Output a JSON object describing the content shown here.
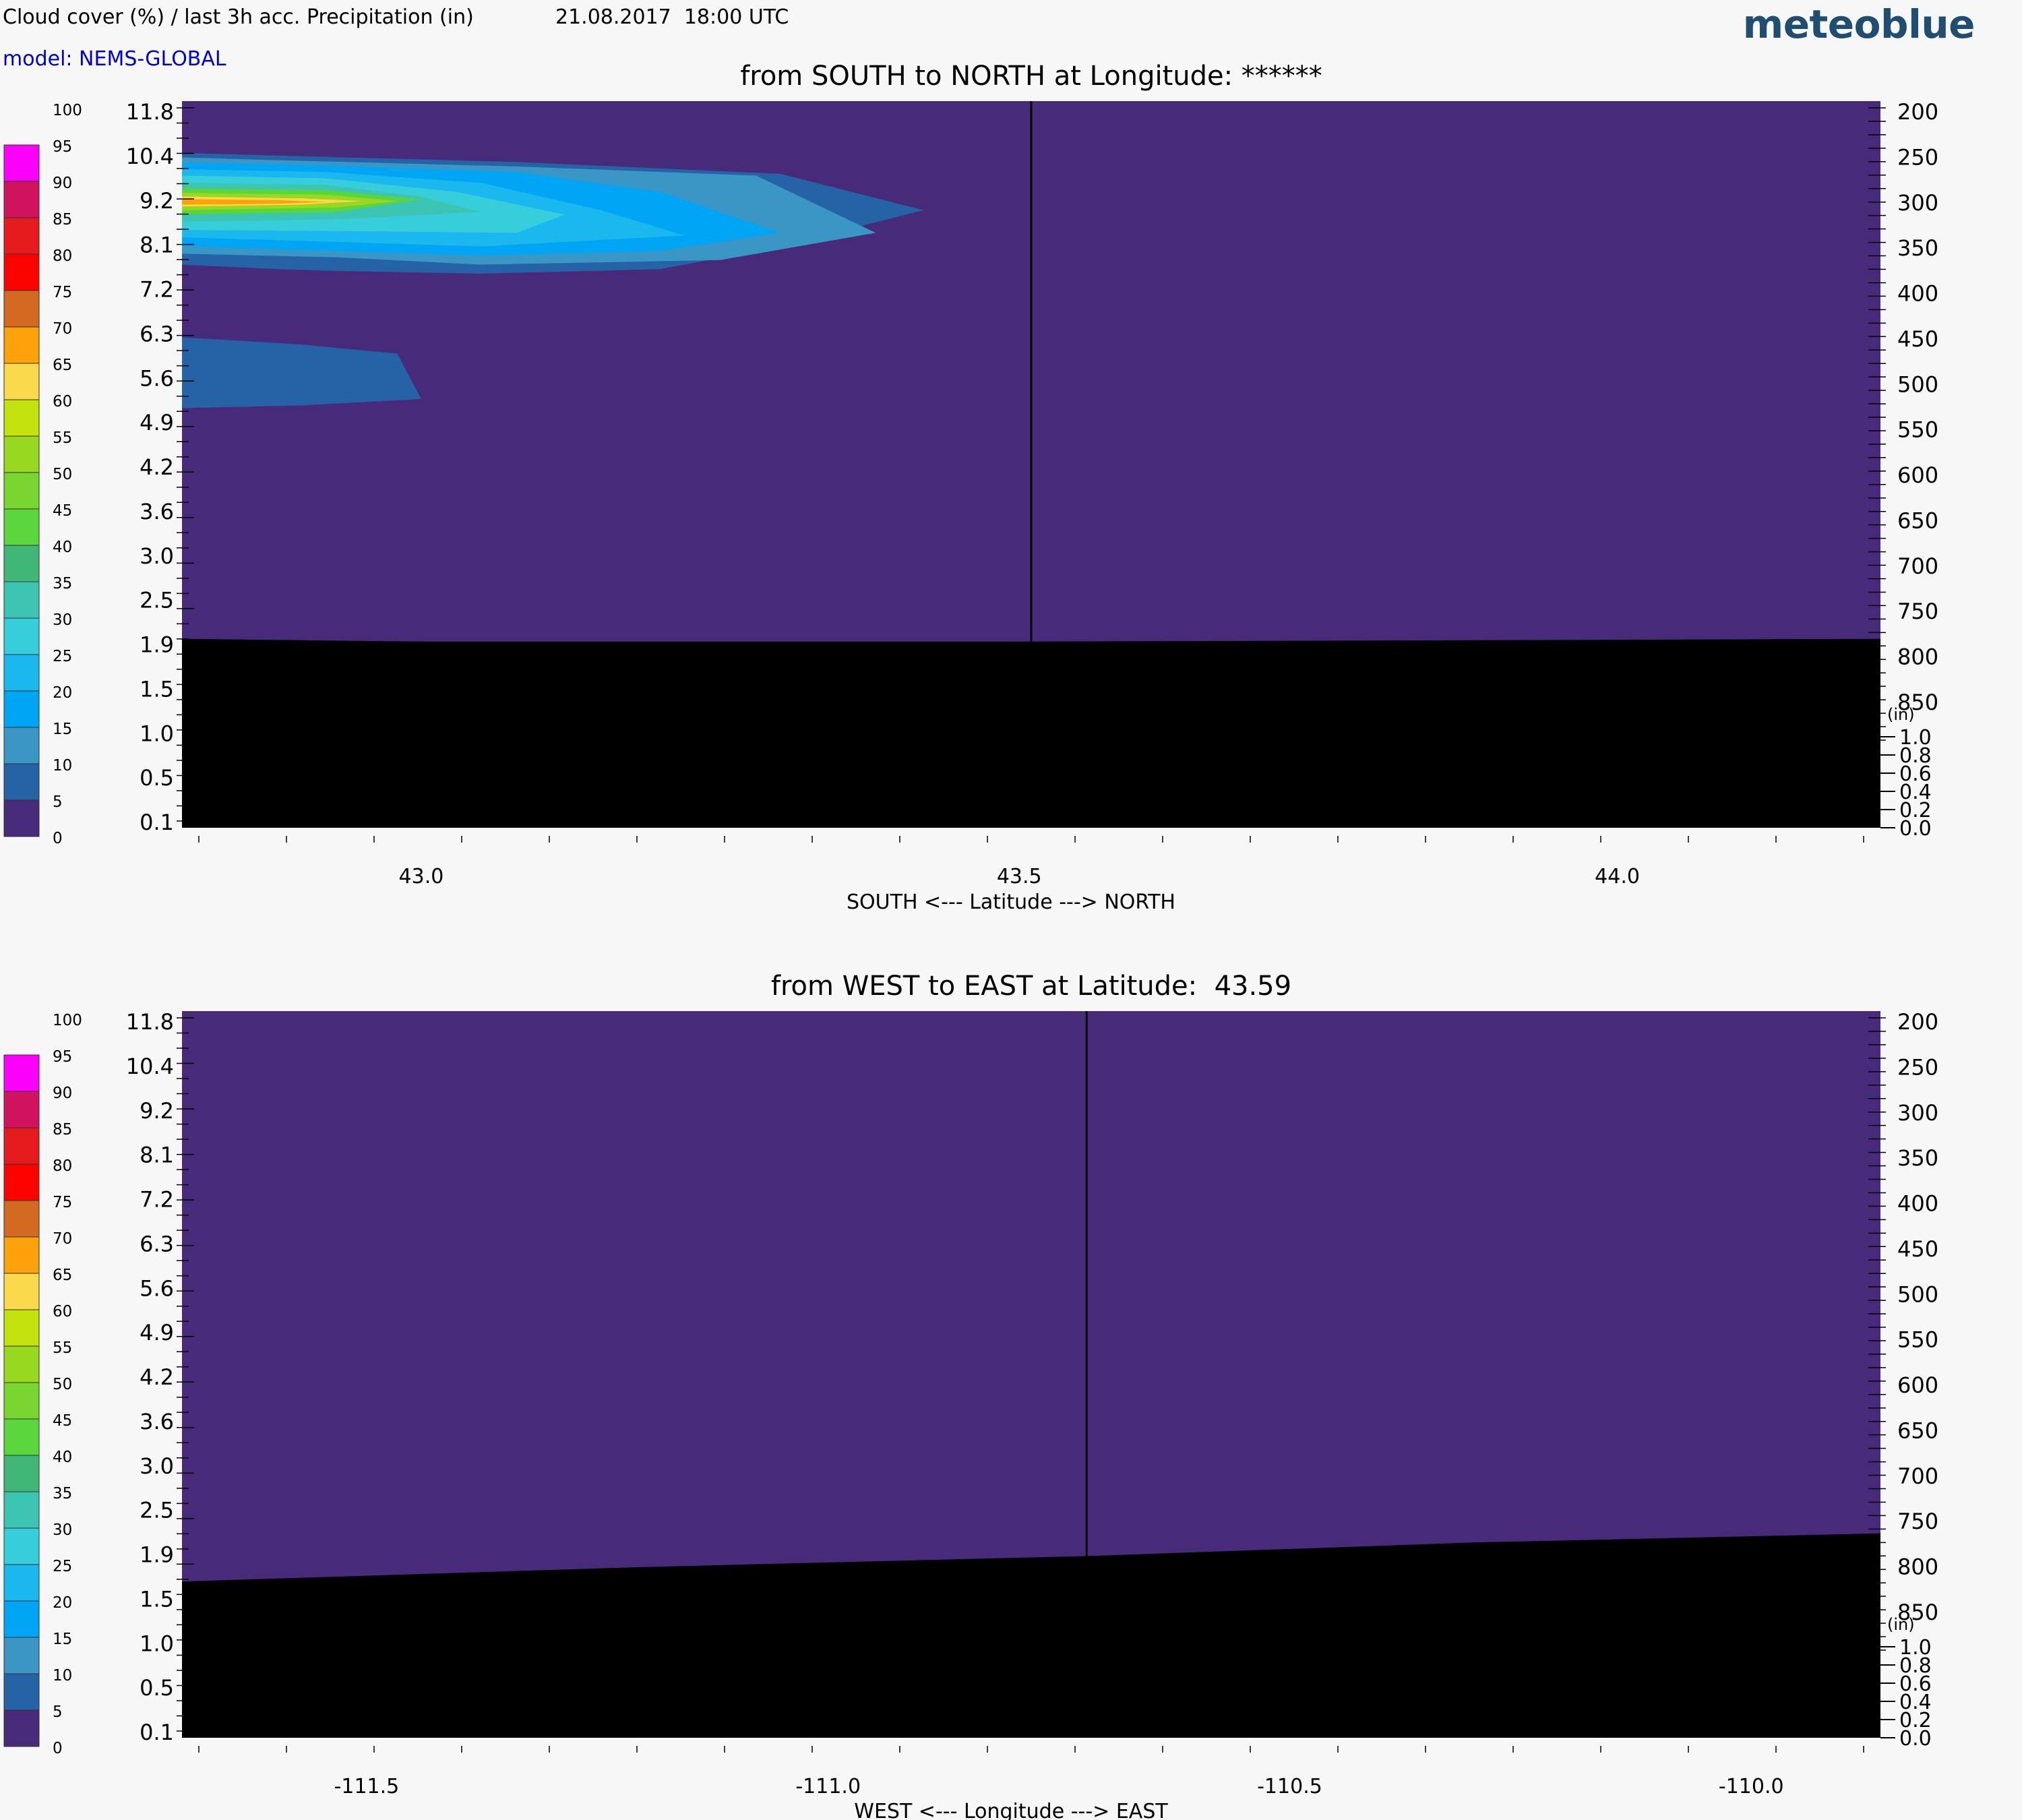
{
  "header": {
    "left_title": "Cloud cover (%) / last 3h acc. Precipitation (in)",
    "datetime": "21.08.2017  18:00 UTC",
    "model": "model: NEMS-GLOBAL",
    "brand": "meteoblue"
  },
  "colors": {
    "background": "#f7f7f7",
    "plot_fill": "#472a79",
    "terrain": "#000000",
    "model_text": "#0000cc",
    "brand": "#1f4e70"
  },
  "colorbar": {
    "levels": [
      "0",
      "5",
      "10",
      "15",
      "20",
      "25",
      "30",
      "35",
      "40",
      "45",
      "50",
      "55",
      "60",
      "65",
      "70",
      "75",
      "80",
      "85",
      "90",
      "95",
      "100"
    ],
    "colors": [
      "#472a79",
      "#2563a6",
      "#3a96c4",
      "#00a6f5",
      "#1ab8ee",
      "#36cedb",
      "#3cc5b2",
      "#40b776",
      "#59d63b",
      "#78d62e",
      "#98d821",
      "#c3e20e",
      "#fbd94d",
      "#fea10b",
      "#d46a21",
      "#fc0300",
      "#e41a1c",
      "#d1125e",
      "#fb00fb"
    ]
  },
  "chart_data": [
    {
      "type": "heatmap",
      "title": "from SOUTH to NORTH at Longitude: ******",
      "xlabel": "SOUTH <---   Latitude   ---> NORTH",
      "x_ticks": [
        "43.0",
        "43.5",
        "44.0"
      ],
      "x_tick_values": [
        43.0,
        43.5,
        44.0
      ],
      "xlim": [
        42.8,
        44.22
      ],
      "marker_x": 43.51,
      "y_left_ticks": [
        "11.8",
        "10.4",
        "9.2",
        "8.1",
        "7.2",
        "6.3",
        "5.6",
        "4.9",
        "4.2",
        "3.6",
        "3.0",
        "2.5",
        "1.9",
        "1.5",
        "1.0",
        "0.5",
        "0.1"
      ],
      "y_right_ticks": [
        "200",
        "250",
        "300",
        "350",
        "400",
        "450",
        "500",
        "550",
        "600",
        "650",
        "700",
        "750",
        "800",
        "850"
      ],
      "precip_ticks": [
        "1.0",
        "0.8",
        "0.6",
        "0.4",
        "0.2",
        "0.0"
      ],
      "precip_unit": "(in)",
      "ylim_pressure": [
        200,
        1000
      ],
      "terrain_top_pressure": [
        [
          42.8,
          792
        ],
        [
          43.0,
          795
        ],
        [
          43.5,
          795
        ],
        [
          44.0,
          793
        ],
        [
          44.22,
          792
        ]
      ],
      "cloud_regions": [
        {
          "level": 5,
          "polygon_lat_hpa": [
            [
              42.8,
              257
            ],
            [
              42.88,
              260
            ],
            [
              43.08,
              267
            ],
            [
              43.3,
              280
            ],
            [
              43.42,
              320
            ],
            [
              43.3,
              360
            ],
            [
              43.2,
              385
            ],
            [
              43.05,
              390
            ],
            [
              42.93,
              387
            ],
            [
              42.88,
              385
            ],
            [
              42.8,
              380
            ]
          ]
        },
        {
          "level": 10,
          "polygon_lat_hpa": [
            [
              42.8,
              262
            ],
            [
              42.88,
              265
            ],
            [
              43.08,
              272
            ],
            [
              43.28,
              282
            ],
            [
              43.38,
              345
            ],
            [
              43.25,
              375
            ],
            [
              43.05,
              380
            ],
            [
              42.93,
              372
            ],
            [
              42.8,
              368
            ]
          ]
        },
        {
          "level": 15,
          "polygon_lat_hpa": [
            [
              42.8,
              268
            ],
            [
              42.9,
              270
            ],
            [
              43.08,
              278
            ],
            [
              43.2,
              300
            ],
            [
              43.3,
              345
            ],
            [
              43.2,
              365
            ],
            [
              43.05,
              370
            ],
            [
              42.93,
              365
            ],
            [
              42.8,
              360
            ]
          ]
        },
        {
          "level": 20,
          "polygon_lat_hpa": [
            [
              42.8,
              275
            ],
            [
              42.92,
              278
            ],
            [
              43.05,
              290
            ],
            [
              43.15,
              320
            ],
            [
              43.22,
              348
            ],
            [
              43.05,
              360
            ],
            [
              42.93,
              355
            ],
            [
              42.8,
              350
            ]
          ]
        },
        {
          "level": 25,
          "polygon_lat_hpa": [
            [
              42.8,
              282
            ],
            [
              42.92,
              285
            ],
            [
              43.03,
              300
            ],
            [
              43.12,
              325
            ],
            [
              43.08,
              345
            ],
            [
              42.93,
              343
            ],
            [
              42.8,
              342
            ]
          ]
        },
        {
          "level": 30,
          "polygon_lat_hpa": [
            [
              42.8,
              290
            ],
            [
              42.92,
              292
            ],
            [
              43.0,
              305
            ],
            [
              43.05,
              322
            ],
            [
              42.93,
              330
            ],
            [
              42.8,
              333
            ]
          ]
        },
        {
          "level": 40,
          "polygon_lat_hpa": [
            [
              42.8,
              296
            ],
            [
              42.92,
              298
            ],
            [
              43.0,
              308
            ],
            [
              42.93,
              322
            ],
            [
              42.8,
              325
            ]
          ]
        },
        {
          "level": 50,
          "polygon_lat_hpa": [
            [
              42.8,
              301
            ],
            [
              42.92,
              303
            ],
            [
              42.98,
              310
            ],
            [
              42.93,
              317
            ],
            [
              42.8,
              320
            ]
          ]
        },
        {
          "level": 60,
          "polygon_lat_hpa": [
            [
              42.8,
              305
            ],
            [
              42.9,
              307
            ],
            [
              42.95,
              310
            ],
            [
              42.9,
              314
            ],
            [
              42.8,
              316
            ]
          ]
        },
        {
          "level": 65,
          "polygon_lat_hpa": [
            [
              42.8,
              308
            ],
            [
              42.88,
              309
            ],
            [
              42.92,
              311
            ],
            [
              42.88,
              313
            ],
            [
              42.8,
              314
            ]
          ]
        },
        {
          "level": 5,
          "polygon_lat_hpa": [
            [
              42.8,
              460
            ],
            [
              42.9,
              468
            ],
            [
              42.98,
              478
            ],
            [
              43.0,
              528
            ],
            [
              42.9,
              535
            ],
            [
              42.8,
              538
            ]
          ]
        }
      ]
    },
    {
      "type": "heatmap",
      "title": "from WEST to EAST at Latitude:  43.59",
      "xlabel": "WEST <---   Longitude   ---> EAST",
      "x_ticks": [
        "-111.5",
        "-111.0",
        "-110.5",
        "-110.0"
      ],
      "x_tick_values": [
        -111.5,
        -111.0,
        -110.5,
        -110.0
      ],
      "xlim": [
        -111.7,
        -109.86
      ],
      "marker_x": -110.72,
      "y_left_ticks": [
        "11.8",
        "10.4",
        "9.2",
        "8.1",
        "7.2",
        "6.3",
        "5.6",
        "4.9",
        "4.2",
        "3.6",
        "3.0",
        "2.5",
        "1.9",
        "1.5",
        "1.0",
        "0.5",
        "0.1"
      ],
      "y_right_ticks": [
        "200",
        "250",
        "300",
        "350",
        "400",
        "450",
        "500",
        "550",
        "600",
        "650",
        "700",
        "750",
        "800",
        "850"
      ],
      "precip_ticks": [
        "1.0",
        "0.8",
        "0.6",
        "0.4",
        "0.2",
        "0.0"
      ],
      "precip_unit": "(in)",
      "ylim_pressure": [
        200,
        1000
      ],
      "terrain_top_pressure": [
        [
          -111.7,
          828
        ],
        [
          -111.2,
          812
        ],
        [
          -110.72,
          800
        ],
        [
          -110.3,
          785
        ],
        [
          -109.86,
          775
        ]
      ],
      "cloud_regions": []
    }
  ]
}
